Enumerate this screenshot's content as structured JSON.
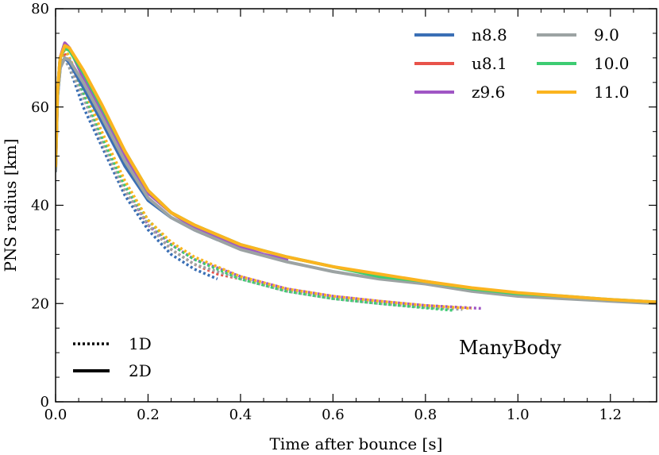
{
  "chart_data": {
    "type": "line",
    "title": "",
    "xlabel": "Time after bounce [s]",
    "ylabel": "PNS radius [km]",
    "xlim": [
      0,
      1.3
    ],
    "ylim": [
      0,
      80
    ],
    "xticks": [
      0.0,
      0.2,
      0.4,
      0.6,
      0.8,
      1.0,
      1.2
    ],
    "xtick_labels": [
      "0.0",
      "0.2",
      "0.4",
      "0.6",
      "0.8",
      "1.0",
      "1.2"
    ],
    "yticks": [
      0,
      20,
      40,
      60,
      80
    ],
    "ytick_labels": [
      "0",
      "20",
      "40",
      "60",
      "80"
    ],
    "annotation": "ManyBody",
    "legend_models": [
      {
        "label": "n8.8",
        "color": "#3a6fb5"
      },
      {
        "label": "u8.1",
        "color": "#e8534a"
      },
      {
        "label": "z9.6",
        "color": "#a056c4"
      },
      {
        "label": "9.0",
        "color": "#9ca3a3"
      },
      {
        "label": "10.0",
        "color": "#3dcc72"
      },
      {
        "label": "11.0",
        "color": "#fbb41f"
      }
    ],
    "legend_styles": [
      {
        "label": "1D",
        "style": "dotted"
      },
      {
        "label": "2D",
        "style": "solid"
      }
    ],
    "series": [
      {
        "name": "n8.8 1D",
        "model": "n8.8",
        "style": "dotted",
        "x": [
          0.0,
          0.004,
          0.01,
          0.018,
          0.03,
          0.06,
          0.1,
          0.15,
          0.2,
          0.25,
          0.3,
          0.35
        ],
        "y": [
          50,
          62,
          68,
          70,
          68,
          60,
          52,
          42,
          35,
          30,
          27,
          25
        ]
      },
      {
        "name": "u8.1 1D",
        "model": "u8.1",
        "style": "dotted",
        "x": [
          0.0,
          0.004,
          0.01,
          0.018,
          0.03,
          0.06,
          0.1,
          0.15,
          0.2,
          0.25,
          0.3,
          0.35,
          0.4,
          0.45
        ],
        "y": [
          50,
          63,
          69,
          71,
          69,
          62,
          53,
          43,
          36,
          31,
          28,
          26,
          25,
          24
        ]
      },
      {
        "name": "z9.6 1D",
        "model": "z9.6",
        "style": "dotted",
        "x": [
          0.0,
          0.004,
          0.01,
          0.02,
          0.03,
          0.06,
          0.1,
          0.15,
          0.2,
          0.25,
          0.3,
          0.4,
          0.5,
          0.6,
          0.7,
          0.8,
          0.92
        ],
        "y": [
          50,
          63,
          69,
          72,
          70,
          63,
          54,
          44,
          36,
          32,
          29,
          25.5,
          23,
          21.5,
          20.5,
          19.6,
          19
        ]
      },
      {
        "name": "9.0 1D",
        "model": "9.0",
        "style": "dotted",
        "x": [
          0.0,
          0.004,
          0.01,
          0.018,
          0.03,
          0.06,
          0.1,
          0.15,
          0.2,
          0.25,
          0.3,
          0.4,
          0.5,
          0.6,
          0.7,
          0.8,
          0.88
        ],
        "y": [
          50,
          62,
          68,
          70,
          68,
          62,
          53,
          43,
          36,
          31,
          28,
          25,
          22.5,
          21,
          20,
          19.2,
          18.8
        ]
      },
      {
        "name": "10.0 1D",
        "model": "10.0",
        "style": "dotted",
        "x": [
          0.0,
          0.004,
          0.01,
          0.02,
          0.03,
          0.06,
          0.1,
          0.15,
          0.2,
          0.25,
          0.3,
          0.4,
          0.5,
          0.6,
          0.7,
          0.8,
          0.86
        ],
        "y": [
          50,
          63,
          69,
          72,
          70,
          63,
          54,
          44,
          37,
          32,
          29,
          25,
          22.5,
          21,
          20,
          19.1,
          18.6
        ]
      },
      {
        "name": "11.0 1D",
        "model": "11.0",
        "style": "dotted",
        "x": [
          0.0,
          0.004,
          0.01,
          0.02,
          0.03,
          0.06,
          0.1,
          0.15,
          0.2,
          0.25,
          0.3,
          0.4,
          0.5,
          0.6,
          0.7,
          0.8,
          0.9
        ],
        "y": [
          50,
          63,
          69,
          72,
          70,
          64,
          55,
          45,
          37,
          32.5,
          29.5,
          25.5,
          23,
          21.5,
          20.5,
          19.6,
          19
        ]
      },
      {
        "name": "n8.8 2D",
        "model": "n8.8",
        "style": "solid",
        "x": [
          0.0,
          0.004,
          0.01,
          0.02,
          0.03,
          0.06,
          0.1,
          0.15,
          0.2,
          0.25,
          0.3,
          0.35
        ],
        "y": [
          47,
          62,
          68,
          70,
          69,
          64,
          57,
          48,
          41,
          37.5,
          35,
          33
        ]
      },
      {
        "name": "u8.1 2D",
        "model": "u8.1",
        "style": "solid",
        "x": [
          0.0,
          0.004,
          0.01,
          0.02,
          0.03,
          0.06,
          0.1,
          0.15,
          0.2,
          0.25,
          0.3,
          0.35,
          0.4
        ],
        "y": [
          48,
          63,
          70,
          73,
          72,
          66,
          59,
          50,
          42.5,
          38.5,
          35.5,
          33.5,
          31.5
        ]
      },
      {
        "name": "z9.6 2D",
        "model": "z9.6",
        "style": "solid",
        "x": [
          0.0,
          0.004,
          0.01,
          0.02,
          0.03,
          0.06,
          0.1,
          0.15,
          0.2,
          0.25,
          0.3,
          0.35,
          0.4,
          0.45,
          0.5
        ],
        "y": [
          48,
          63,
          70,
          73,
          72,
          66,
          59,
          50,
          42.5,
          38.5,
          35.5,
          33.5,
          31.5,
          30,
          29
        ]
      },
      {
        "name": "9.0 2D",
        "model": "9.0",
        "style": "solid",
        "x": [
          0.0,
          0.004,
          0.01,
          0.02,
          0.03,
          0.06,
          0.1,
          0.15,
          0.2,
          0.25,
          0.3,
          0.4,
          0.5,
          0.6,
          0.7,
          0.8,
          0.9,
          1.0,
          1.1,
          1.2,
          1.3
        ],
        "y": [
          47,
          62,
          68,
          70,
          69.5,
          65,
          58,
          49,
          41.5,
          37.5,
          35,
          31,
          28.5,
          26.5,
          25,
          24,
          22.5,
          21.5,
          21,
          20.5,
          20
        ]
      },
      {
        "name": "10.0 2D",
        "model": "10.0",
        "style": "solid",
        "x": [
          0.0,
          0.004,
          0.01,
          0.02,
          0.03,
          0.06,
          0.1,
          0.15,
          0.2,
          0.25,
          0.3,
          0.4,
          0.5,
          0.6,
          0.7,
          0.8,
          0.9,
          1.0,
          1.1,
          1.2,
          1.3
        ],
        "y": [
          48,
          63,
          70,
          72,
          71.5,
          67,
          60,
          51,
          43,
          38.5,
          36,
          32,
          29.5,
          27.5,
          25.5,
          24.5,
          23,
          22,
          21.5,
          20.8,
          20.3
        ]
      },
      {
        "name": "11.0 2D",
        "model": "11.0",
        "style": "solid",
        "x": [
          0.0,
          0.004,
          0.01,
          0.02,
          0.03,
          0.06,
          0.1,
          0.15,
          0.2,
          0.25,
          0.3,
          0.4,
          0.5,
          0.6,
          0.7,
          0.8,
          0.9,
          1.0,
          1.1,
          1.2,
          1.3
        ],
        "y": [
          48,
          63,
          70,
          72.5,
          72,
          67.5,
          60.5,
          51,
          43,
          38.5,
          36,
          32,
          29.5,
          27.5,
          26,
          24.5,
          23.2,
          22.2,
          21.5,
          20.8,
          20.3
        ]
      }
    ]
  }
}
